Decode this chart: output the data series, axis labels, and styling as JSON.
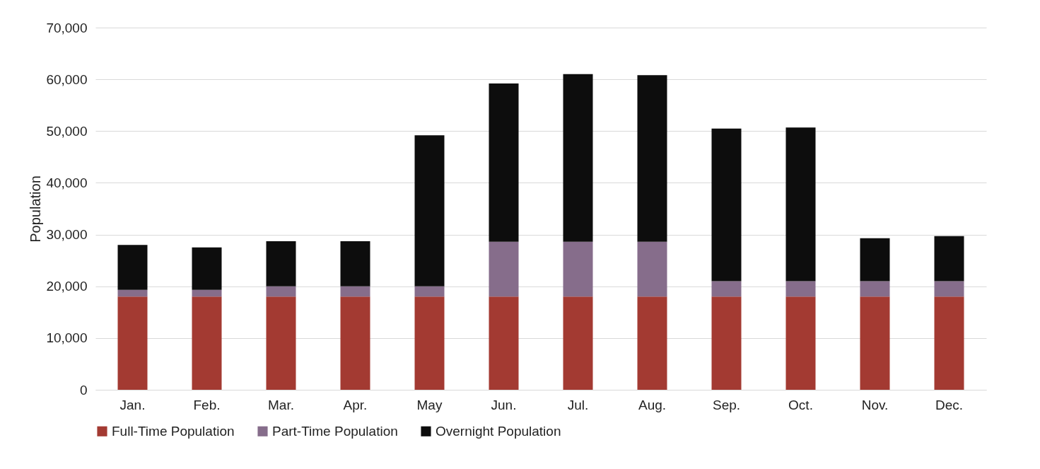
{
  "chart_data": {
    "type": "bar",
    "ylabel": "Population",
    "categories": [
      "Jan.",
      "Feb.",
      "Mar.",
      "Apr.",
      "May",
      "Jun.",
      "Jul.",
      "Aug.",
      "Sep.",
      "Oct.",
      "Nov.",
      "Dec."
    ],
    "series": [
      {
        "name": "Full-Time Population",
        "color": "#a33a32",
        "values": [
          18000,
          18000,
          18000,
          18000,
          18000,
          18000,
          18000,
          18000,
          18000,
          18000,
          18000,
          18000
        ]
      },
      {
        "name": "Part-Time Population",
        "color": "#866d8b",
        "values": [
          1300,
          1300,
          2000,
          2000,
          2000,
          10600,
          10600,
          10600,
          3000,
          3000,
          3000,
          3000
        ]
      },
      {
        "name": "Overnight Population",
        "color": "#0d0d0d",
        "values": [
          8700,
          8200,
          8700,
          8700,
          29200,
          30600,
          32400,
          32200,
          29500,
          29700,
          8300,
          8700
        ]
      }
    ],
    "stacked": true,
    "ylim": [
      0,
      70000
    ],
    "yticks": [
      0,
      {
        "value": 10000,
        "label": "10,000"
      },
      {
        "value": 20000,
        "label": "20,000"
      },
      {
        "value": 30000,
        "label": "30,000"
      },
      {
        "value": 40000,
        "label": "40,000"
      },
      {
        "value": 50000,
        "label": "50,000"
      },
      {
        "value": 60000,
        "label": "60,000"
      },
      {
        "value": 70000,
        "label": "70,000"
      }
    ],
    "grid": "y",
    "legend": "bottom"
  }
}
